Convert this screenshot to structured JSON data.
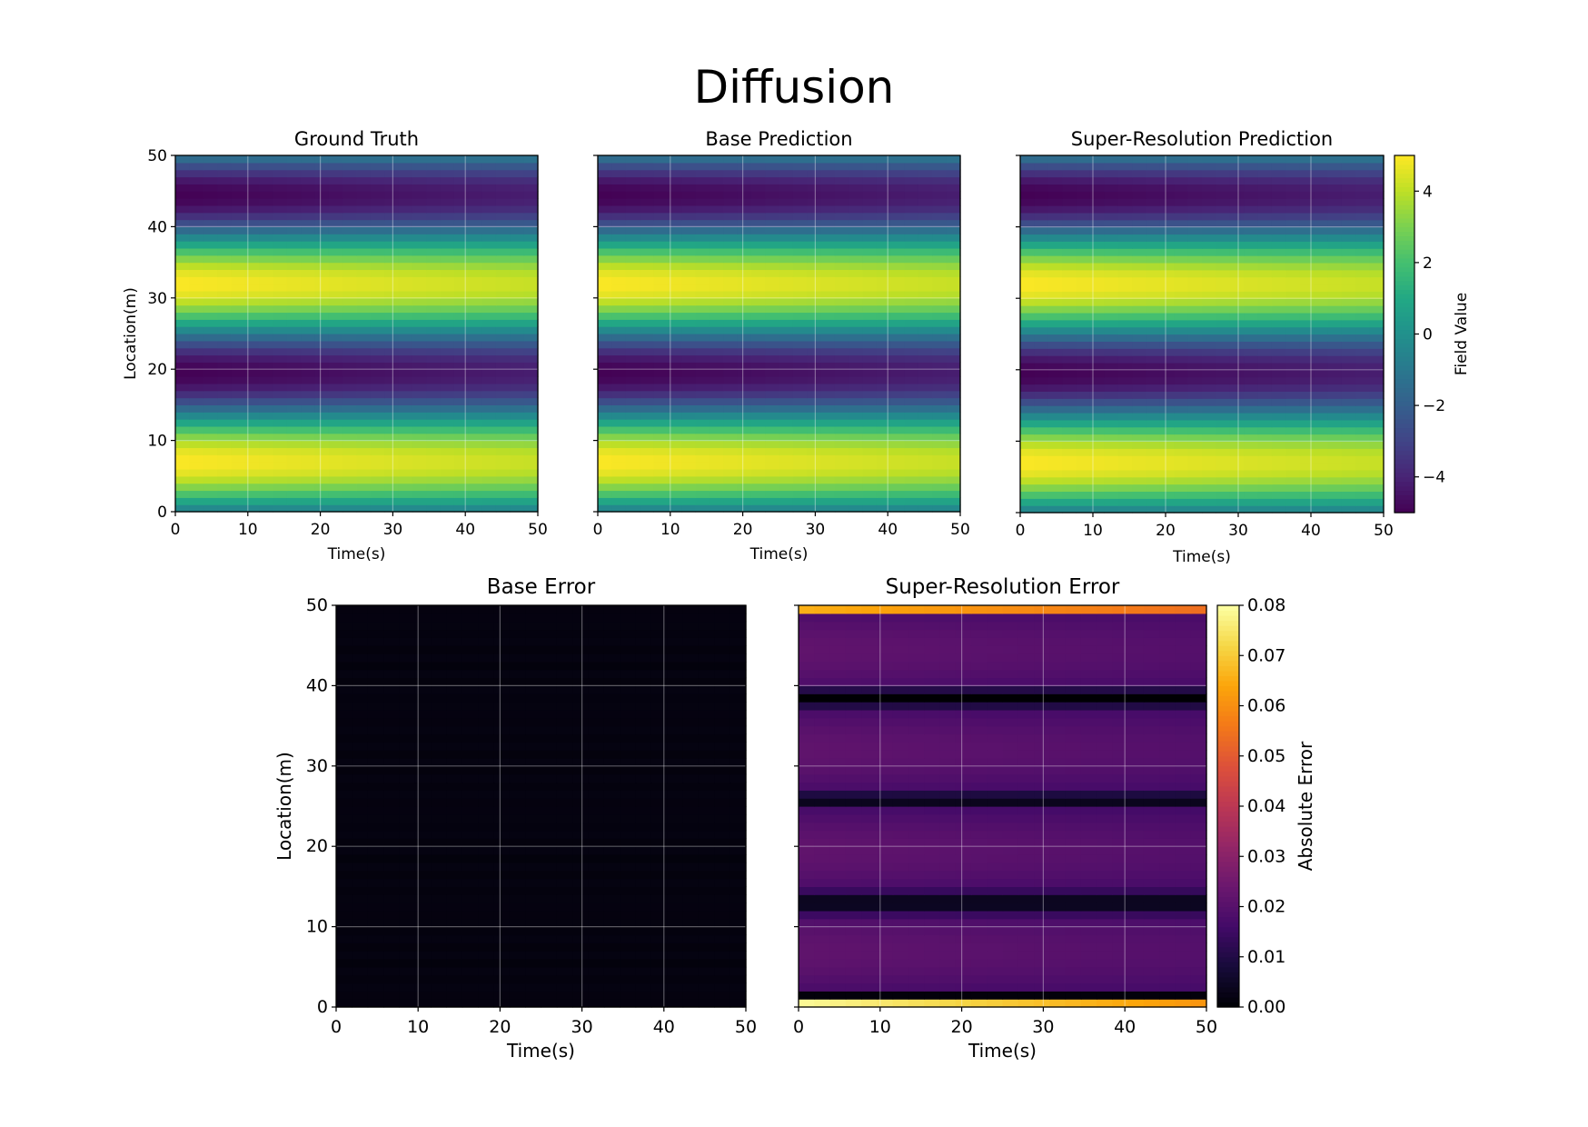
{
  "title": "Diffusion",
  "chart_data": [
    {
      "type": "heatmap",
      "title": "Ground Truth",
      "xlabel": "Time(s)",
      "ylabel": "Location(m)",
      "xlim": [
        0,
        50
      ],
      "ylim": [
        0,
        50
      ],
      "xticks": [
        "0",
        "10",
        "20",
        "30",
        "40",
        "50"
      ],
      "yticks": [
        "0",
        "10",
        "20",
        "30",
        "40",
        "50"
      ],
      "colormap": "viridis",
      "vmin": -5,
      "vmax": 5,
      "field": "u(x,t) = 5·cos(2π(x − 7)/25)·exp(−0.0036·t); peaks near x≈7 and x≈32, troughs near x≈19 and x≈44",
      "grid": true
    },
    {
      "type": "heatmap",
      "title": "Base Prediction",
      "xlabel": "Time(s)",
      "ylabel": "",
      "xlim": [
        0,
        50
      ],
      "ylim": [
        0,
        50
      ],
      "xticks": [
        "0",
        "10",
        "20",
        "30",
        "40",
        "50"
      ],
      "colormap": "viridis",
      "vmin": -5,
      "vmax": 5,
      "field": "same as Ground Truth",
      "grid": true
    },
    {
      "type": "heatmap",
      "title": "Super-Resolution Prediction",
      "xlabel": "Time(s)",
      "ylabel": "",
      "xlim": [
        0,
        50
      ],
      "ylim": [
        0,
        50
      ],
      "xticks": [
        "0",
        "10",
        "20",
        "30",
        "40",
        "50"
      ],
      "colormap": "viridis",
      "vmin": -5,
      "vmax": 5,
      "field": "same as Ground Truth",
      "grid": true,
      "colorbar": {
        "label": "Field Value",
        "ticks": [
          "4",
          "2",
          "0",
          "−2",
          "−4"
        ],
        "tick_values": [
          4,
          2,
          0,
          -2,
          -4
        ]
      }
    },
    {
      "type": "heatmap",
      "title": "Base Error",
      "xlabel": "Time(s)",
      "ylabel": "Location(m)",
      "xlim": [
        0,
        50
      ],
      "ylim": [
        0,
        50
      ],
      "xticks": [
        "0",
        "10",
        "20",
        "30",
        "40",
        "50"
      ],
      "yticks": [
        "0",
        "10",
        "20",
        "30",
        "40",
        "50"
      ],
      "colormap": "inferno",
      "vmin": 0,
      "vmax": 0.08,
      "field": "near zero everywhere (≈0.000–0.002)",
      "grid": true
    },
    {
      "type": "heatmap",
      "title": "Super-Resolution Error",
      "xlabel": "Time(s)",
      "ylabel": "",
      "xlim": [
        0,
        50
      ],
      "ylim": [
        0,
        50
      ],
      "xticks": [
        "0",
        "10",
        "20",
        "30",
        "40",
        "50"
      ],
      "colormap": "inferno",
      "vmin": 0,
      "vmax": 0.08,
      "field": "≈0.015–0.025 in bands, ≈0 near x≈13, 26, 38; boundary rows (x≈0 and x≈50) ≈0.06–0.08",
      "grid": true,
      "colorbar": {
        "label": "Absolute Error",
        "ticks": [
          "0.08",
          "0.07",
          "0.06",
          "0.05",
          "0.04",
          "0.03",
          "0.02",
          "0.01",
          "0.00"
        ],
        "tick_values": [
          0.08,
          0.07,
          0.06,
          0.05,
          0.04,
          0.03,
          0.02,
          0.01,
          0.0
        ]
      }
    }
  ]
}
